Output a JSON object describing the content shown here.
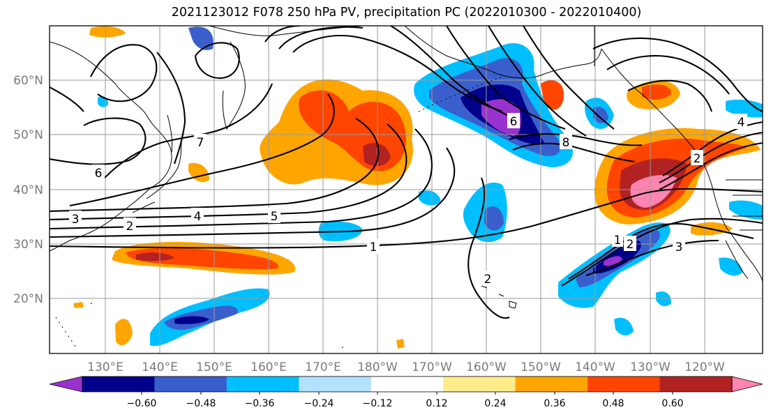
{
  "title": "2021123012 F078 250 hPa PV, precipitation PC (2022010300 - 2022010400)",
  "map": {
    "lat_labels": [
      "60°N",
      "50°N",
      "40°N",
      "30°N",
      "20°N"
    ],
    "lon_labels": [
      "130°E",
      "140°E",
      "150°E",
      "160°E",
      "170°E",
      "180°W",
      "170°W",
      "160°W",
      "150°W",
      "140°W",
      "130°W",
      "120°W"
    ],
    "contour_labels": [
      "6",
      "7",
      "3",
      "2",
      "4",
      "5",
      "1",
      "6",
      "8",
      "2",
      "4",
      "3",
      "2",
      "1",
      "2"
    ],
    "grid": true
  },
  "colorbar": {
    "tick_labels": [
      "−0.60",
      "−0.48",
      "−0.36",
      "−0.24",
      "−0.12",
      "0.12",
      "0.24",
      "0.36",
      "0.48",
      "0.60"
    ],
    "colors": [
      "#9a32cd",
      "#00008b",
      "#3a5fcd",
      "#00bfff",
      "#b2e2ff",
      "#ffffff",
      "#ffeb8a",
      "#ffa500",
      "#ff4500",
      "#b22222",
      "#ff85b0"
    ]
  },
  "palette": {
    "neg_strong": "#9a32cd",
    "neg_dark": "#00008b",
    "neg_mid": "#3a5fcd",
    "neg_light": "#00bfff",
    "neg_pale": "#b2e2ff",
    "pos_pale": "#ffeb8a",
    "pos_light": "#ffa500",
    "pos_mid": "#ff4500",
    "pos_dark": "#b22222",
    "pos_strong": "#ff85b0"
  }
}
